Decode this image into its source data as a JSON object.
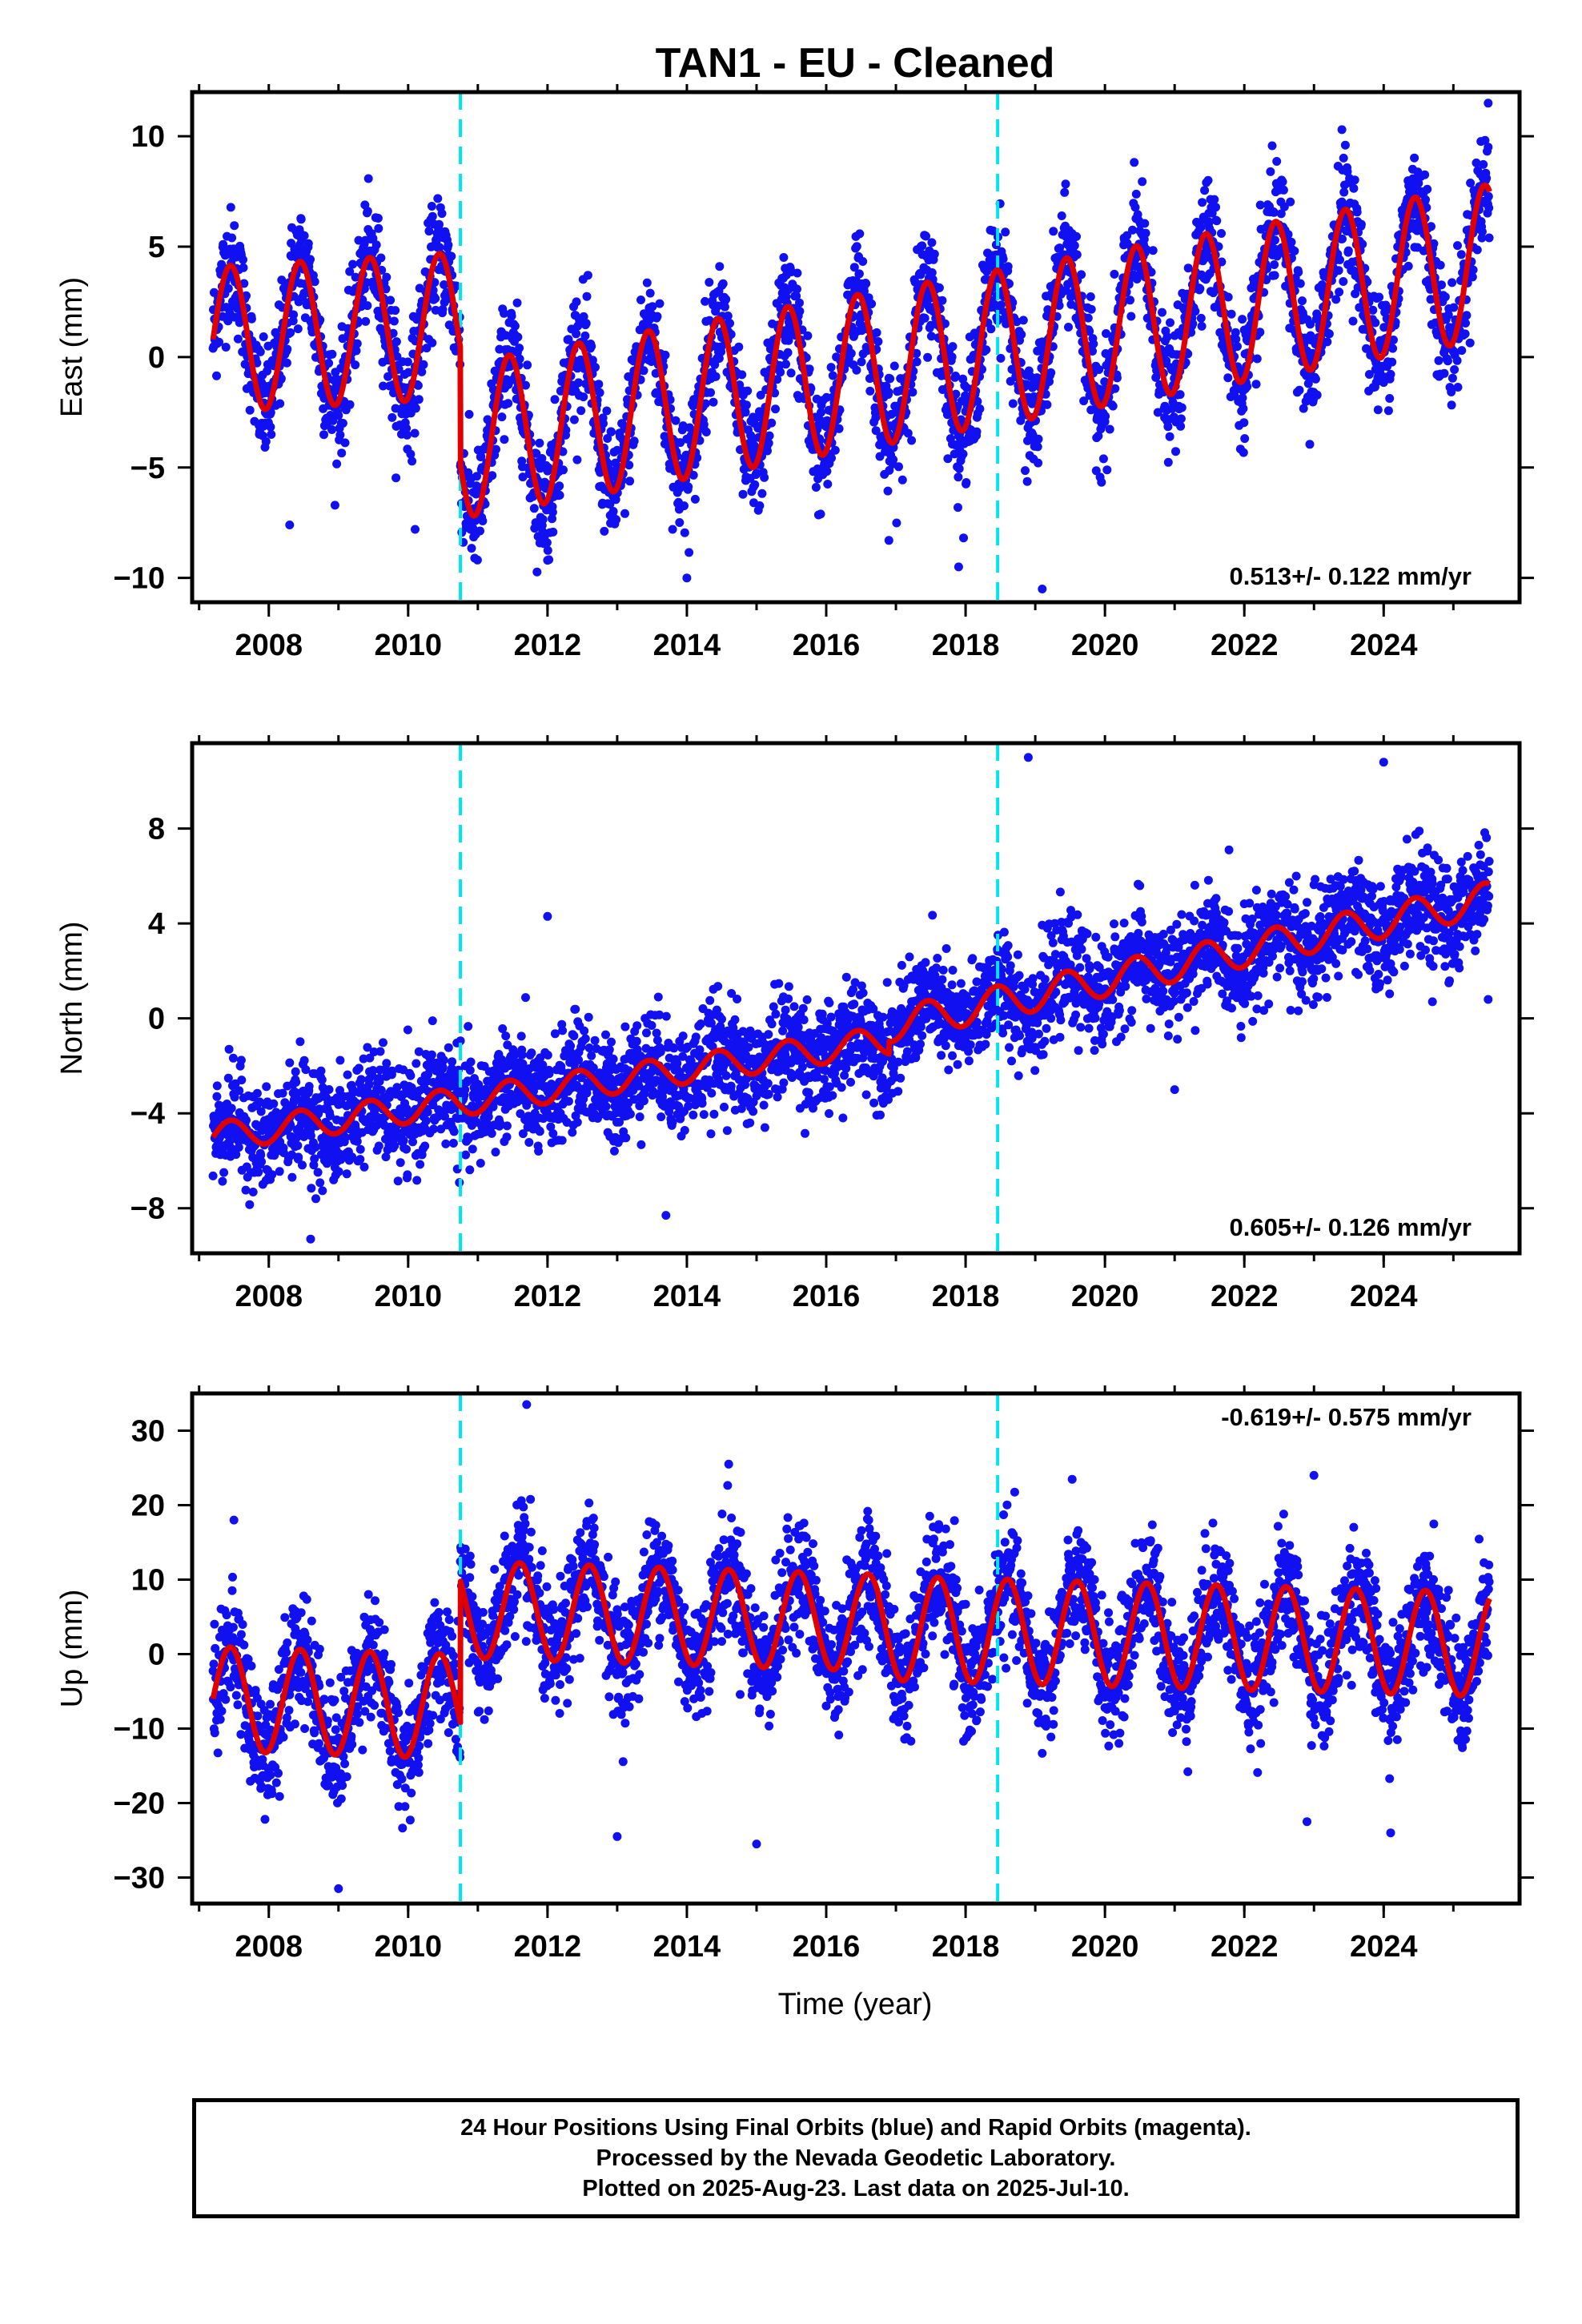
{
  "title": "TAN1  - EU - Cleaned",
  "xlabel": "Time (year)",
  "colors": {
    "data": "#1010f0",
    "model": "#e00000",
    "offset": "#00e5ee",
    "frame": "#000000"
  },
  "caption": [
    "24 Hour Positions Using Final Orbits (blue) and Rapid Orbits (magenta).",
    "Processed by the Nevada Geodetic Laboratory.",
    "Plotted on 2025-Aug-23. Last data on 2025-Jul-10."
  ],
  "chart_data": [
    {
      "type": "scatter",
      "ylabel": "East (mm)",
      "xlim": [
        2006.9,
        2025.95
      ],
      "ylim": [
        -11.1,
        12
      ],
      "xticks": [
        2008,
        2010,
        2012,
        2014,
        2016,
        2018,
        2020,
        2022,
        2024
      ],
      "yticks": [
        -10,
        -5,
        0,
        5,
        10
      ],
      "ytick_labels": [
        "−10",
        "−5",
        "0",
        "5",
        "10"
      ],
      "rate_label": "0.513+/- 0.122 mm/yr",
      "rate_position": "bottom-right",
      "offsets": [
        2010.75,
        2018.46
      ],
      "data_span": [
        2007.2,
        2025.52
      ],
      "model": {
        "segments": [
          {
            "from": 2007.2,
            "to": 2010.75,
            "start": 0.8,
            "slope": 0.18,
            "amplitude": 3.3,
            "peak_phase": 0.45
          },
          {
            "from": 2010.75,
            "to": 2025.52,
            "start": -3.8,
            "slope": 0.55,
            "amplitude": 3.5,
            "peak_phase": 0.45
          }
        ]
      },
      "scatter_sigma": 1.3,
      "outliers": [
        [
          2008.3,
          -7.6
        ],
        [
          2010.1,
          -7.8
        ],
        [
          2012.0,
          -9.2
        ],
        [
          2014.0,
          -10.0
        ],
        [
          2017.9,
          -9.5
        ],
        [
          2019.1,
          -10.5
        ],
        [
          2025.5,
          11.5
        ],
        [
          2016.9,
          -8.3
        ],
        [
          2023.4,
          10.3
        ]
      ],
      "series": [
        {
          "name": "Final Orbits (blue)"
        }
      ]
    },
    {
      "type": "scatter",
      "ylabel": "North (mm)",
      "xlim": [
        2006.9,
        2025.95
      ],
      "ylim": [
        -9.9,
        11.6
      ],
      "xticks": [
        2008,
        2010,
        2012,
        2014,
        2016,
        2018,
        2020,
        2022,
        2024
      ],
      "yticks": [
        -8,
        -4,
        0,
        4,
        8
      ],
      "ytick_labels": [
        "−8",
        "−4",
        "0",
        "4",
        "8"
      ],
      "rate_label": "0.605+/- 0.126 mm/yr",
      "rate_position": "bottom-right",
      "offsets": [
        2010.75,
        2018.46
      ],
      "data_span": [
        2007.2,
        2025.52
      ],
      "model": {
        "segments": [
          {
            "from": 2007.2,
            "to": 2016.9,
            "start": -5.0,
            "slope": 0.42,
            "amplitude": 0.6,
            "peak_phase": 0.45
          },
          {
            "from": 2016.9,
            "to": 2025.52,
            "start": -0.3,
            "slope": 0.62,
            "amplitude": 0.7,
            "peak_phase": 0.45
          }
        ]
      },
      "scatter_sigma": 1.1,
      "outliers": [
        [
          2012.0,
          4.3
        ],
        [
          2018.9,
          11.0
        ],
        [
          2024.0,
          10.8
        ],
        [
          2008.6,
          -9.3
        ],
        [
          2013.7,
          -8.3
        ],
        [
          2021.0,
          -3.0
        ],
        [
          2024.7,
          0.7
        ],
        [
          2025.5,
          0.8
        ]
      ],
      "series": [
        {
          "name": "Final Orbits (blue)"
        }
      ]
    },
    {
      "type": "scatter",
      "ylabel": "Up (mm)",
      "xlim": [
        2006.9,
        2025.95
      ],
      "ylim": [
        -33.5,
        35
      ],
      "xticks": [
        2008,
        2010,
        2012,
        2014,
        2016,
        2018,
        2020,
        2022,
        2024
      ],
      "yticks": [
        -30,
        -20,
        -10,
        0,
        10,
        20,
        30
      ],
      "ytick_labels": [
        "−30",
        "−20",
        "−10",
        "0",
        "10",
        "20",
        "30"
      ],
      "rate_label": "-0.619+/- 0.575 mm/yr",
      "rate_position": "top-right",
      "offsets": [
        2010.75,
        2018.46
      ],
      "data_span": [
        2007.2,
        2025.52
      ],
      "model": {
        "segments": [
          {
            "from": 2007.2,
            "to": 2010.75,
            "start": -6.0,
            "slope": -0.3,
            "amplitude": 7.0,
            "peak_phase": 0.45
          },
          {
            "from": 2010.75,
            "to": 2016.75,
            "start": 6.0,
            "slope": -0.3,
            "amplitude": 6.5,
            "peak_phase": 0.6
          },
          {
            "from": 2016.75,
            "to": 2025.52,
            "start": 3.5,
            "slope": -0.25,
            "amplitude": 7.0,
            "peak_phase": 0.6
          }
        ]
      },
      "scatter_sigma": 4.0,
      "outliers": [
        [
          2011.7,
          33.5
        ],
        [
          2009.0,
          -31.5
        ],
        [
          2013.0,
          -24.5
        ],
        [
          2015.0,
          -25.5
        ],
        [
          2022.9,
          -22.5
        ],
        [
          2014.6,
          25.5
        ],
        [
          2007.5,
          18.0
        ],
        [
          2023.0,
          24.0
        ],
        [
          2024.1,
          -24.0
        ]
      ],
      "series": [
        {
          "name": "Final Orbits (blue)"
        }
      ]
    }
  ]
}
